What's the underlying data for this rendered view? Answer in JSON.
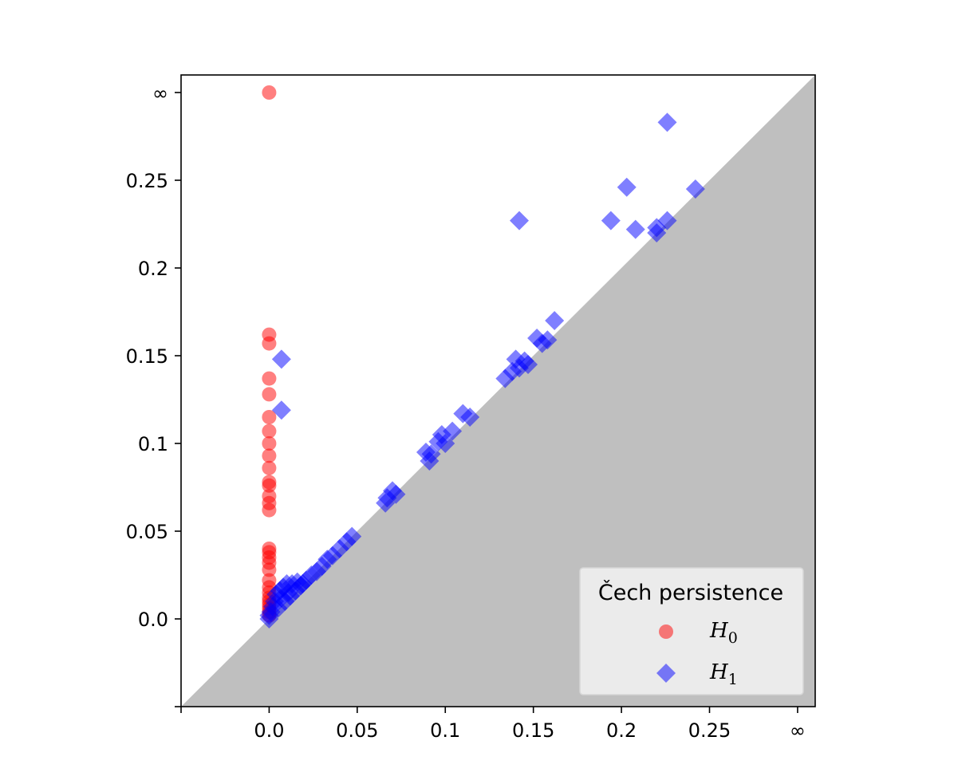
{
  "chart_data": {
    "type": "scatter",
    "title": "",
    "xlabel": "",
    "ylabel": "",
    "xlim": [
      -0.05,
      0.31
    ],
    "ylim": [
      -0.05,
      0.31
    ],
    "infinity_label": "∞",
    "infinity_value": 0.3,
    "x_ticks": [
      {
        "value": 0.0,
        "label": "0.0"
      },
      {
        "value": 0.05,
        "label": "0.05"
      },
      {
        "value": 0.1,
        "label": "0.1"
      },
      {
        "value": 0.15,
        "label": "0.15"
      },
      {
        "value": 0.2,
        "label": "0.2"
      },
      {
        "value": 0.25,
        "label": "0.25"
      }
    ],
    "y_ticks": [
      {
        "value": 0.0,
        "label": "0.0"
      },
      {
        "value": 0.05,
        "label": "0.05"
      },
      {
        "value": 0.1,
        "label": "0.1"
      },
      {
        "value": 0.15,
        "label": "0.15"
      },
      {
        "value": 0.2,
        "label": "0.2"
      },
      {
        "value": 0.25,
        "label": "0.25"
      }
    ],
    "diagonal_fill_color": "#bfbfbf",
    "legend": {
      "title": "Čech persistence",
      "placement": "lower-right"
    },
    "series": [
      {
        "name": "H",
        "subscript": "0",
        "marker": "circle",
        "color": "#ff0000",
        "points": [
          [
            0,
            0.3
          ],
          [
            0,
            0.162
          ],
          [
            0,
            0.157
          ],
          [
            0,
            0.137
          ],
          [
            0,
            0.128
          ],
          [
            0,
            0.115
          ],
          [
            0,
            0.107
          ],
          [
            0,
            0.1
          ],
          [
            0,
            0.093
          ],
          [
            0,
            0.086
          ],
          [
            0,
            0.078
          ],
          [
            0,
            0.076
          ],
          [
            0,
            0.07
          ],
          [
            0,
            0.066
          ],
          [
            0,
            0.062
          ],
          [
            0,
            0.04
          ],
          [
            0,
            0.038
          ],
          [
            0,
            0.035
          ],
          [
            0,
            0.032
          ],
          [
            0,
            0.028
          ],
          [
            0,
            0.022
          ],
          [
            0,
            0.018
          ],
          [
            0,
            0.015
          ],
          [
            0,
            0.012
          ],
          [
            0,
            0.01
          ],
          [
            0,
            0.008
          ],
          [
            0,
            0.006
          ],
          [
            0,
            0.004
          ],
          [
            0,
            0.002
          ]
        ]
      },
      {
        "name": "H",
        "subscript": "1",
        "marker": "diamond",
        "color": "#0000ff",
        "points": [
          [
            0.226,
            0.283
          ],
          [
            0.203,
            0.246
          ],
          [
            0.242,
            0.245
          ],
          [
            0.142,
            0.227
          ],
          [
            0.194,
            0.227
          ],
          [
            0.208,
            0.222
          ],
          [
            0.22,
            0.223
          ],
          [
            0.226,
            0.227
          ],
          [
            0.22,
            0.22
          ],
          [
            0.162,
            0.17
          ],
          [
            0.152,
            0.16
          ],
          [
            0.158,
            0.159
          ],
          [
            0.155,
            0.157
          ],
          [
            0.14,
            0.148
          ],
          [
            0.145,
            0.147
          ],
          [
            0.147,
            0.145
          ],
          [
            0.142,
            0.143
          ],
          [
            0.138,
            0.141
          ],
          [
            0.134,
            0.137
          ],
          [
            0.007,
            0.148
          ],
          [
            0.007,
            0.119
          ],
          [
            0.11,
            0.117
          ],
          [
            0.114,
            0.115
          ],
          [
            0.104,
            0.107
          ],
          [
            0.098,
            0.105
          ],
          [
            0.1,
            0.1
          ],
          [
            0.096,
            0.101
          ],
          [
            0.089,
            0.095
          ],
          [
            0.092,
            0.094
          ],
          [
            0.091,
            0.09
          ],
          [
            0.07,
            0.073
          ],
          [
            0.072,
            0.071
          ],
          [
            0.067,
            0.069
          ],
          [
            0.066,
            0.066
          ],
          [
            0.047,
            0.047
          ],
          [
            0.044,
            0.044
          ],
          [
            0.04,
            0.04
          ],
          [
            0.036,
            0.036
          ],
          [
            0.033,
            0.034
          ],
          [
            0.03,
            0.03
          ],
          [
            0.027,
            0.027
          ],
          [
            0.024,
            0.025
          ],
          [
            0.021,
            0.022
          ],
          [
            0.018,
            0.019
          ],
          [
            0.015,
            0.016
          ],
          [
            0.012,
            0.013
          ],
          [
            0.01,
            0.02
          ],
          [
            0.008,
            0.018
          ],
          [
            0.006,
            0.016
          ],
          [
            0.004,
            0.014
          ],
          [
            0.003,
            0.01
          ],
          [
            0.002,
            0.007
          ],
          [
            0.001,
            0.004
          ],
          [
            0.0,
            0.002
          ],
          [
            0.005,
            0.006
          ],
          [
            0.009,
            0.01
          ],
          [
            0.013,
            0.02
          ],
          [
            0.016,
            0.021
          ],
          [
            0.019,
            0.02
          ],
          [
            0.011,
            0.015
          ],
          [
            0.007,
            0.012
          ],
          [
            0.0,
            0.0
          ]
        ]
      }
    ]
  }
}
